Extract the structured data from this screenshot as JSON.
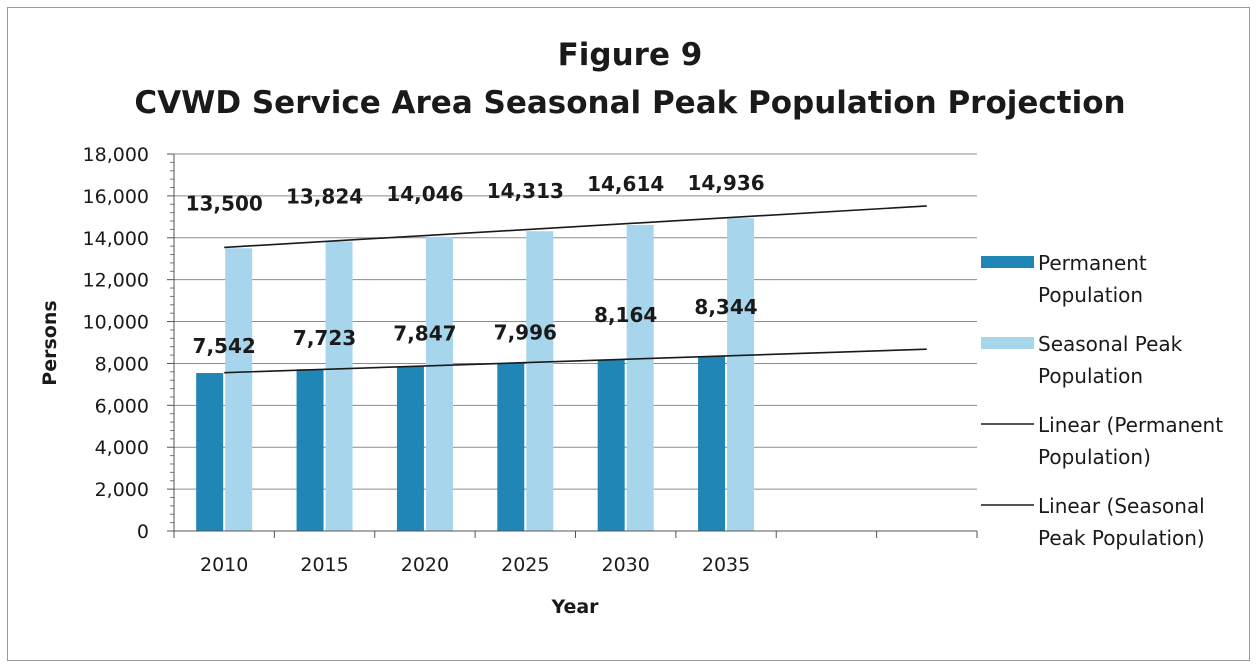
{
  "colors": {
    "permanent": "#1f86b6",
    "seasonal": "#a7d6ec",
    "trendline": "#1a1a1a",
    "gridline": "#8c8c8c"
  },
  "chart_data": {
    "type": "bar",
    "title": "Figure 9",
    "subtitle": "CVWD Service Area Seasonal Peak Population Projection",
    "xlabel": "Year",
    "ylabel": "Persons",
    "categories": [
      "2010",
      "2015",
      "2020",
      "2025",
      "2030",
      "2035"
    ],
    "x_slots": 8,
    "ylim": [
      0,
      18000
    ],
    "yticks": [
      0,
      2000,
      4000,
      6000,
      8000,
      10000,
      12000,
      14000,
      16000,
      18000
    ],
    "ytick_labels": [
      "0",
      "2,000",
      "4,000",
      "6,000",
      "8,000",
      "10,000",
      "12,000",
      "14,000",
      "16,000",
      "18,000"
    ],
    "grid": true,
    "legend_position": "right",
    "series": [
      {
        "name": "Permanent Population",
        "legend_lines": [
          "Permanent",
          "Population"
        ],
        "values": [
          7542,
          7723,
          7847,
          7996,
          8164,
          8344
        ],
        "labels": [
          "7,542",
          "7,723",
          "7,847",
          "7,996",
          "8,164",
          "8,344"
        ]
      },
      {
        "name": "Seasonal Peak Population",
        "legend_lines": [
          "Seasonal Peak",
          "Population"
        ],
        "values": [
          13500,
          13824,
          14046,
          14313,
          14614,
          14936
        ],
        "labels": [
          "13,500",
          "13,824",
          "14,046",
          "14,313",
          "14,614",
          "14,936"
        ]
      }
    ],
    "trendlines": [
      {
        "name": "Linear (Permanent Population)",
        "legend_lines": [
          "Linear (Permanent",
          "Population)"
        ],
        "series_index": 0,
        "y_start": 7560,
        "y_end": 8680
      },
      {
        "name": "Linear (Seasonal Peak Population)",
        "legend_lines": [
          "Linear (Seasonal",
          "Peak Population)"
        ],
        "series_index": 1,
        "y_start": 13540,
        "y_end": 15520
      }
    ]
  }
}
